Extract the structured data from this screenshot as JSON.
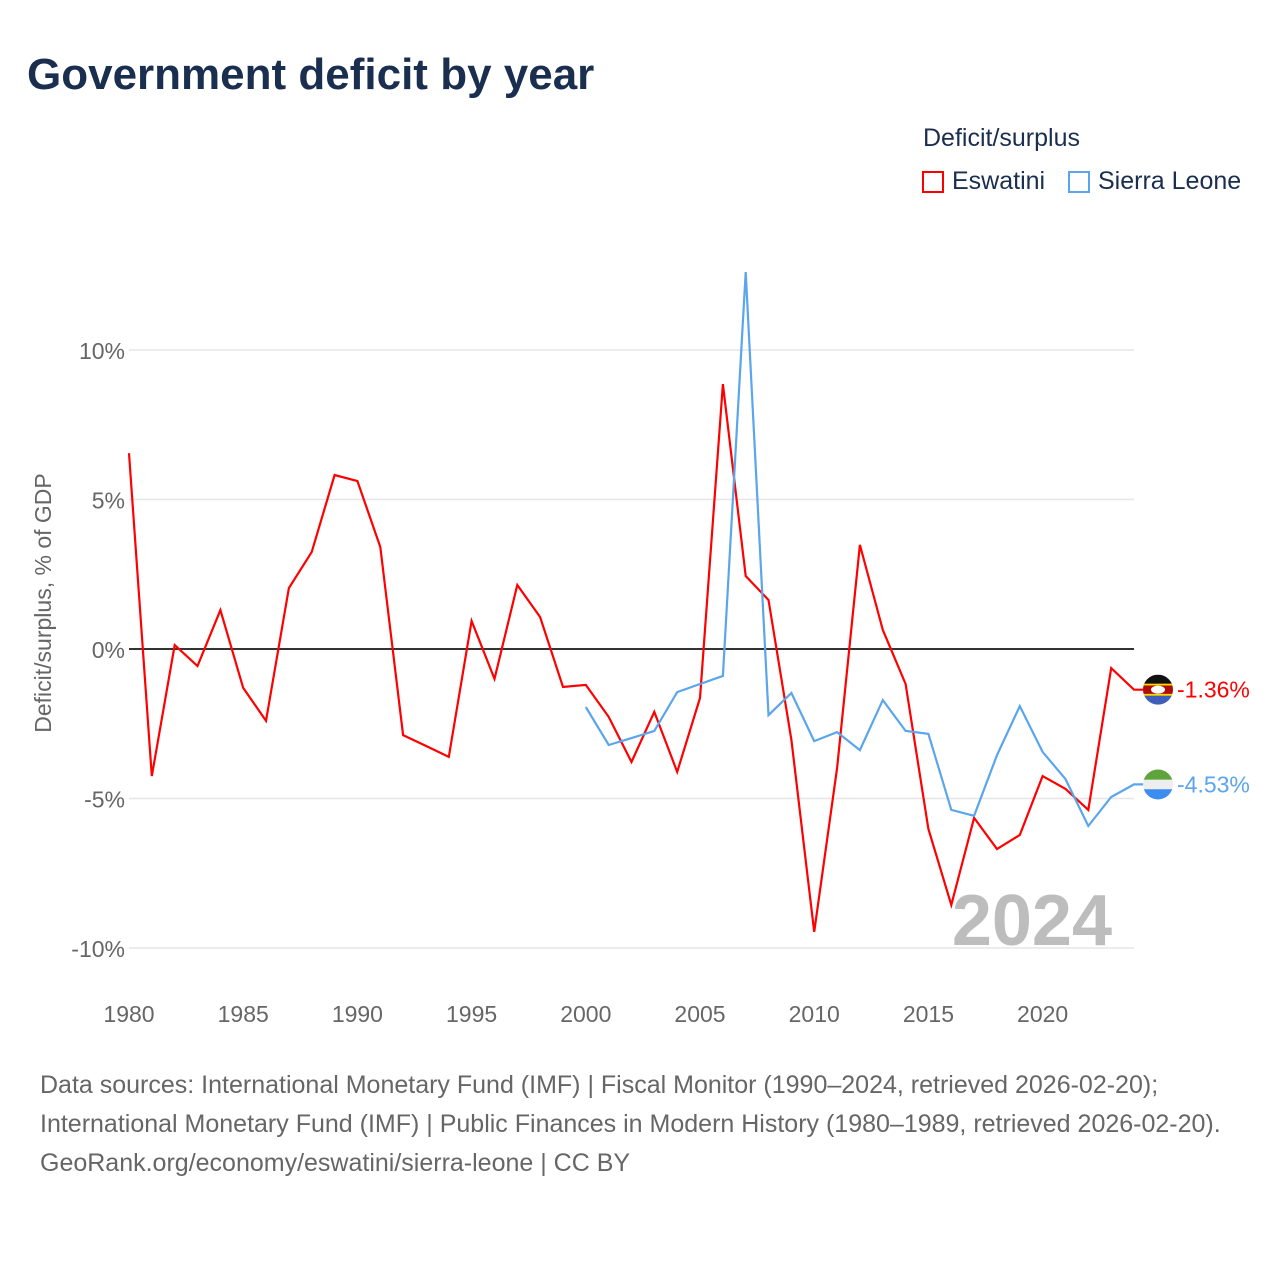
{
  "chart_data": {
    "type": "line",
    "title": "Government deficit by year",
    "xlabel": "",
    "ylabel": "Deficit/surplus, % of GDP",
    "xlim": [
      1980,
      2024
    ],
    "ylim": [
      -12,
      13
    ],
    "x_ticks": [
      1980,
      1985,
      1990,
      1995,
      2000,
      2005,
      2010,
      2015,
      2020
    ],
    "y_ticks": [
      {
        "v": 10,
        "label": "10%"
      },
      {
        "v": 5,
        "label": "5%"
      },
      {
        "v": 0,
        "label": "0%"
      },
      {
        "v": -5,
        "label": "-5%"
      },
      {
        "v": -10,
        "label": "-10%"
      }
    ],
    "grid": true,
    "legend_title": "Deficit/surplus",
    "legend_position": "top-right",
    "year_watermark": "2024",
    "series": [
      {
        "name": "Eswatini",
        "color": "#ff0000",
        "end_label": "-1.36%",
        "start_year": 1980,
        "values": [
          6.55,
          -4.25,
          0.13,
          -0.57,
          1.3,
          -1.3,
          -2.4,
          2.04,
          3.24,
          5.82,
          5.62,
          3.41,
          -2.88,
          -3.24,
          -3.61,
          0.94,
          -1.0,
          2.14,
          1.07,
          -1.27,
          -1.2,
          -2.27,
          -3.78,
          -2.1,
          -4.11,
          -1.64,
          8.86,
          2.44,
          1.64,
          -3.04,
          -9.46,
          -3.98,
          3.48,
          0.64,
          -1.17,
          -6.02,
          -8.56,
          -5.65,
          -6.69,
          -6.22,
          -4.25,
          -4.68,
          -5.38,
          -0.64,
          -1.36
        ]
      },
      {
        "name": "Sierra Leone",
        "color": "#5aa5ec",
        "end_label": "-4.53%",
        "start_year": 2000,
        "values": [
          -1.94,
          -3.21,
          -2.98,
          -2.74,
          -1.44,
          -1.17,
          -0.9,
          12.61,
          -2.21,
          -1.47,
          -3.08,
          -2.78,
          -3.38,
          -1.71,
          -2.74,
          -2.84,
          -5.38,
          -5.58,
          -3.55,
          -1.91,
          -3.44,
          -4.35,
          -5.92,
          -4.95,
          -4.53
        ]
      }
    ]
  },
  "footer": {
    "sources": "Data sources: International Monetary Fund (IMF) | Fiscal Monitor (1990–2024, retrieved 2026-02-20); International Monetary Fund (IMF) | Public Finances in Modern History (1980–1989, retrieved 2026-02-20).",
    "link": "GeoRank.org/economy/eswatini/sierra-leone | CC BY"
  }
}
